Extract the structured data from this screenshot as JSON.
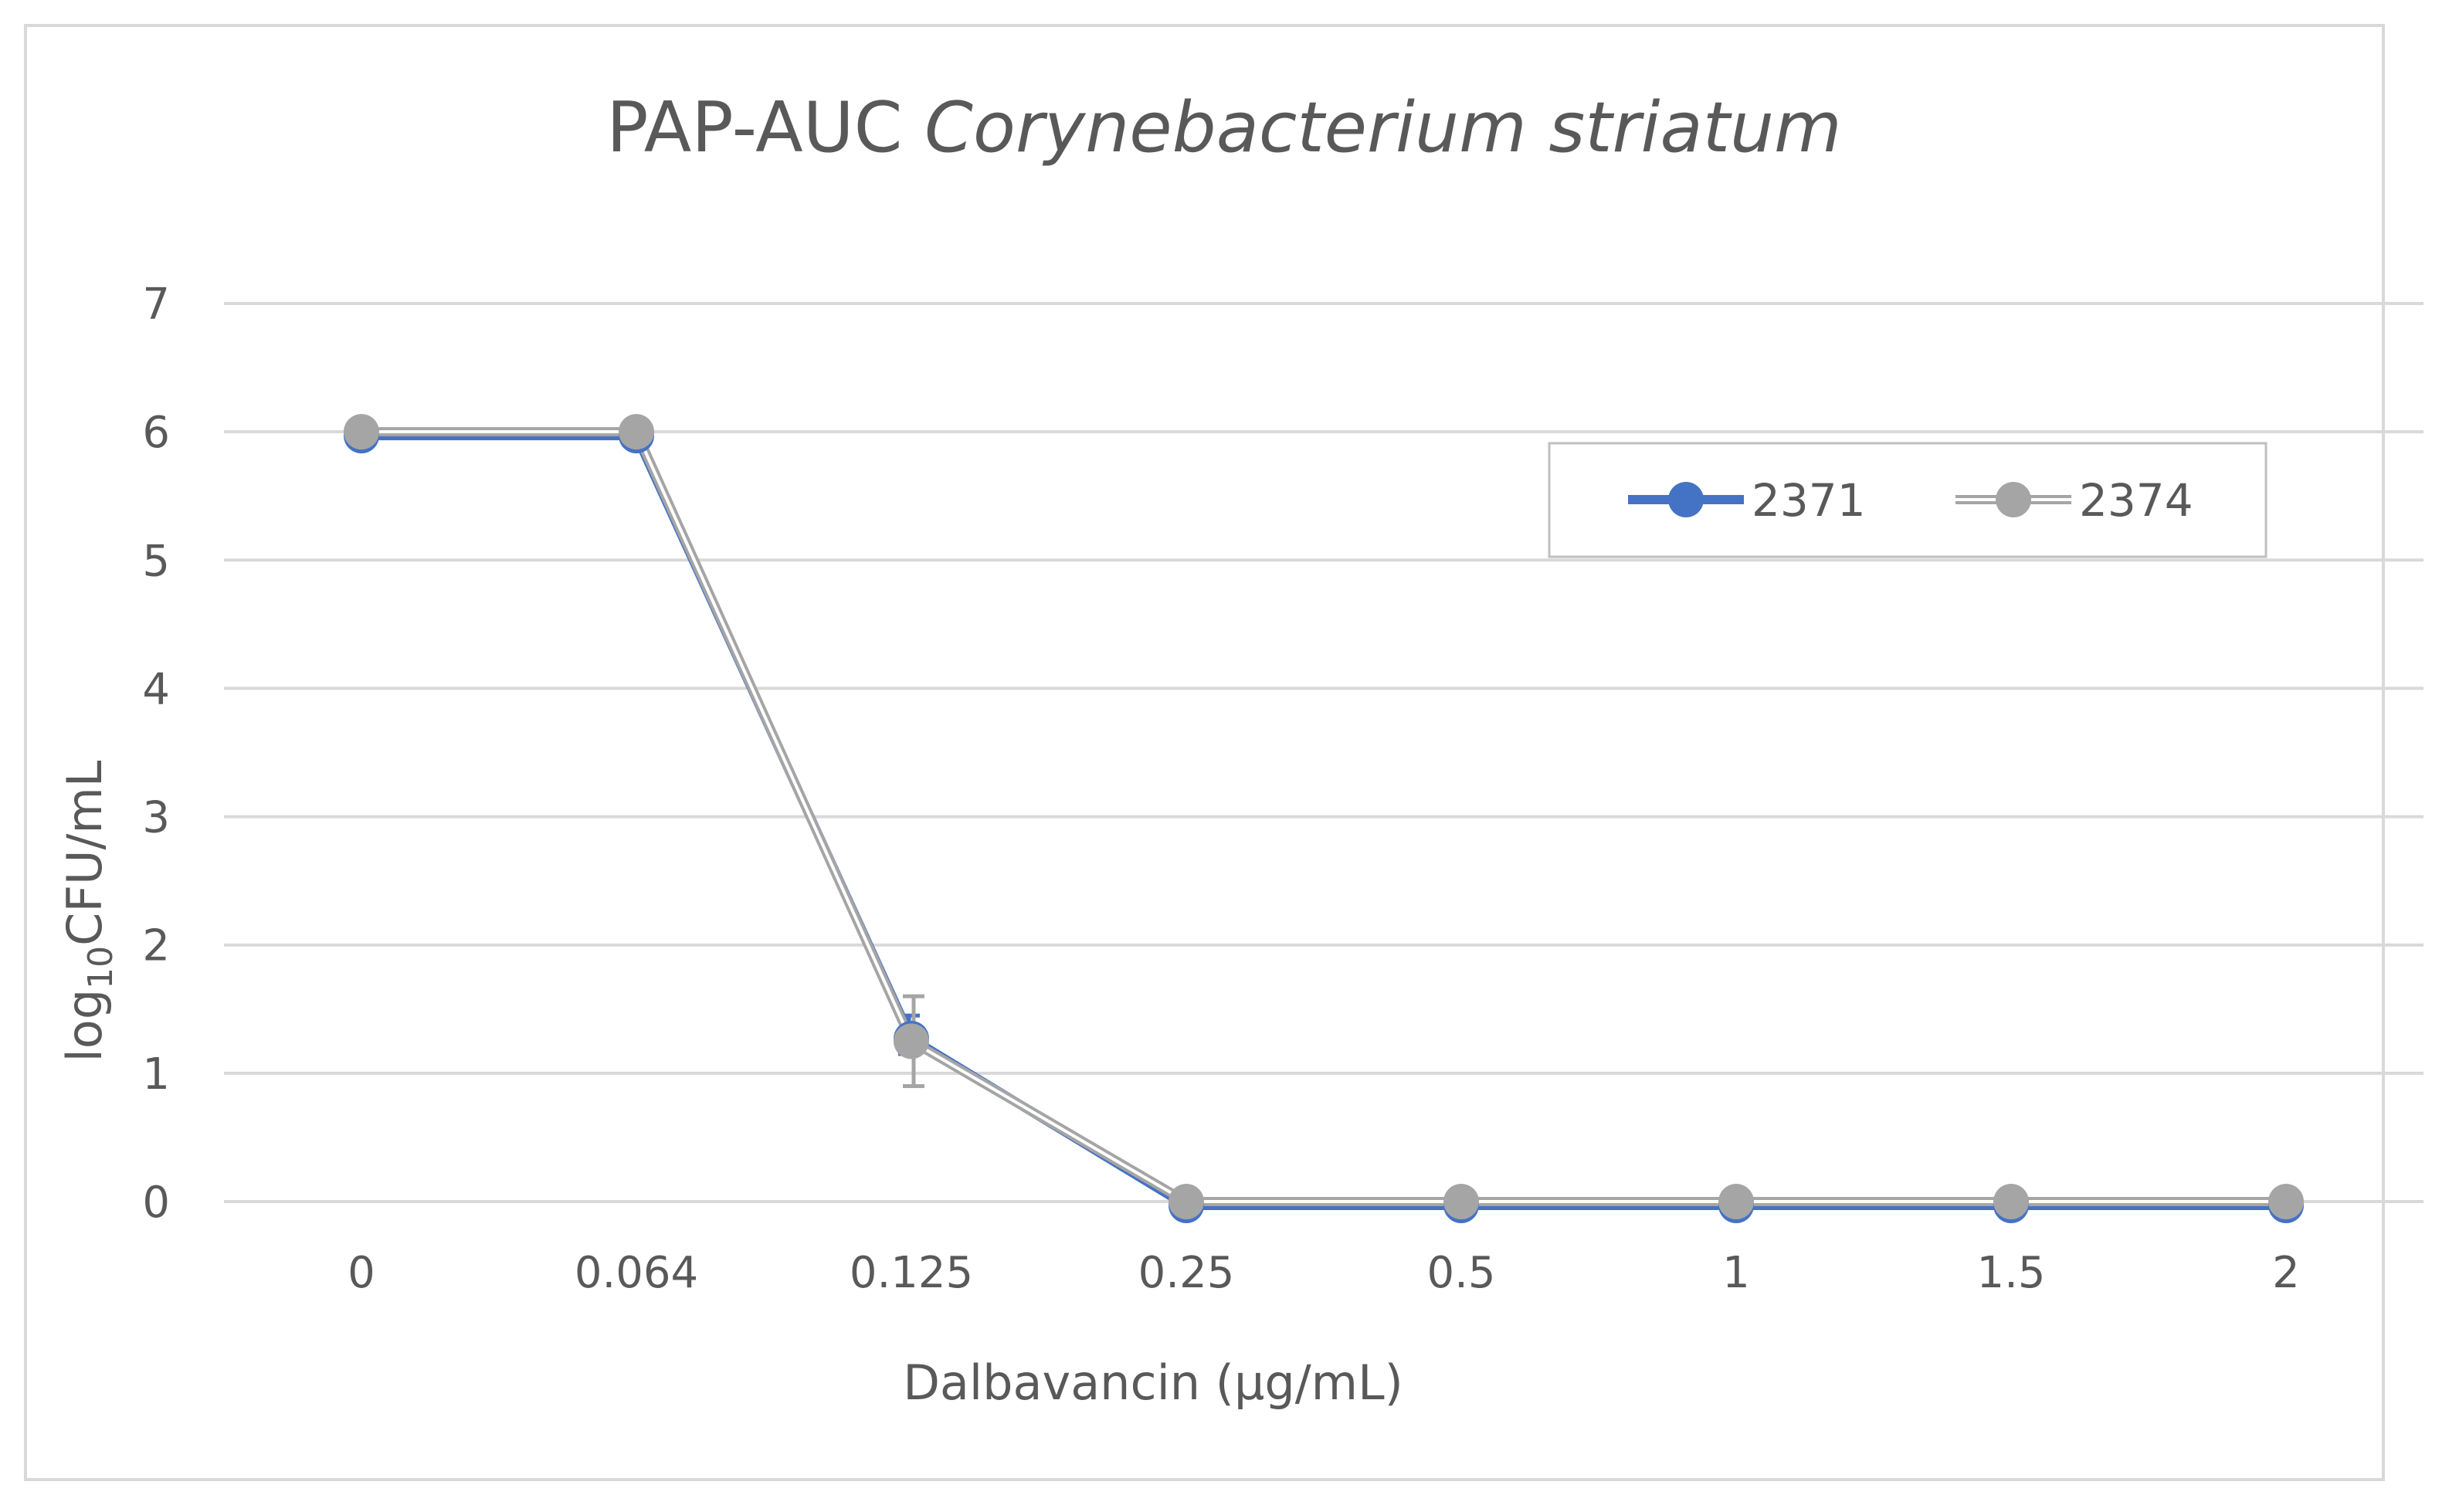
{
  "chart_data": {
    "type": "line",
    "title": "PAP-AUC",
    "title_italic": "Corynebacterium striatum",
    "xlabel": "Dalbavancin (µg/mL)",
    "ylabel_main": "log",
    "ylabel_sub": "10",
    "ylabel_tail": "CFU/mL",
    "categories": [
      "0",
      "0.064",
      "0.125",
      "0.25",
      "0.5",
      "1",
      "1.5",
      "2"
    ],
    "ylim": [
      0,
      7
    ],
    "yticks": [
      0,
      1,
      2,
      3,
      4,
      5,
      6,
      7
    ],
    "grid": true,
    "legend_position": "top-right",
    "series": [
      {
        "name": "2371",
        "color": "#4472c4",
        "values": [
          6,
          6,
          1.3,
          0,
          0,
          0,
          0,
          0
        ],
        "error": [
          0,
          0,
          0.15,
          0,
          0,
          0,
          0,
          0
        ]
      },
      {
        "name": "2374",
        "color": "#a5a5a5",
        "values": [
          6,
          6,
          1.25,
          0,
          0,
          0,
          0,
          0
        ],
        "error": [
          0,
          0,
          0.35,
          0,
          0,
          0,
          0,
          0
        ]
      }
    ]
  }
}
